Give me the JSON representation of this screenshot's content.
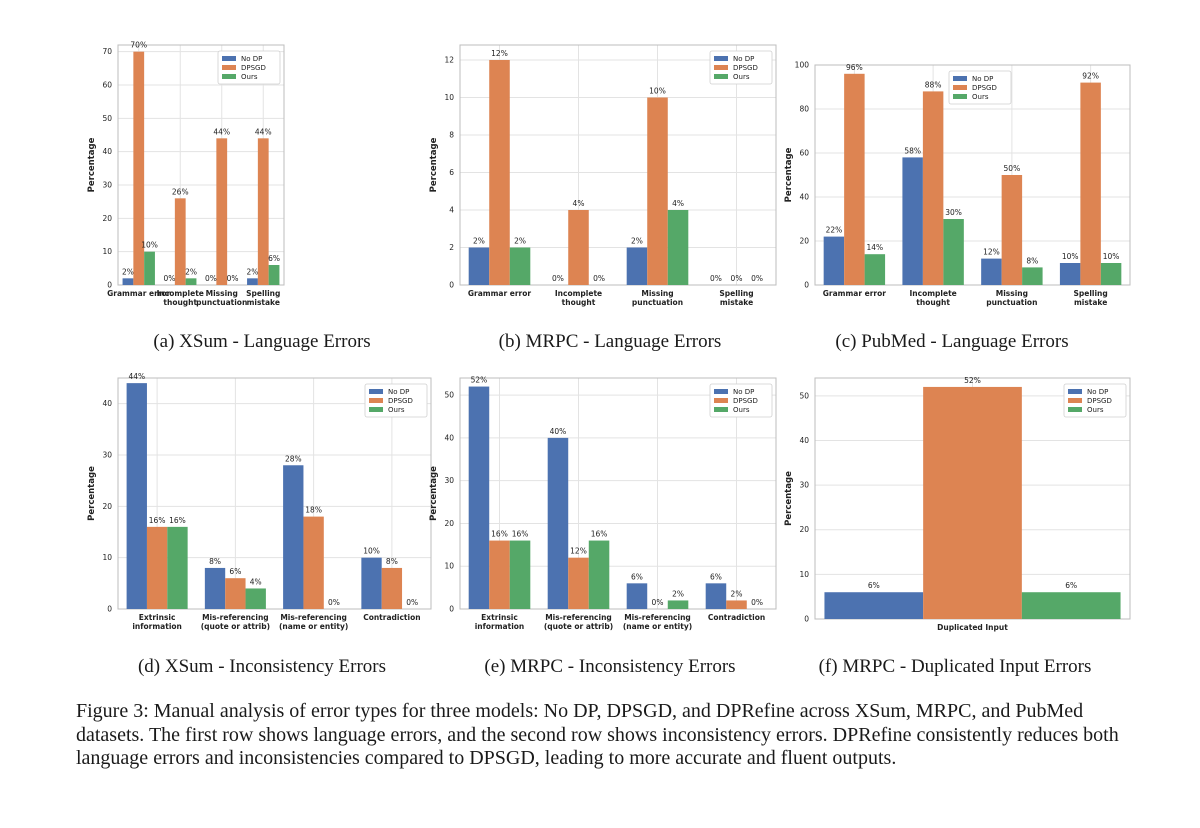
{
  "colors": {
    "nodp": "#4C72B0",
    "dpsgd": "#DD8452",
    "ours": "#55A868",
    "grid": "#e3e3e3",
    "frame": "#bdbdbd",
    "text": "#222222"
  },
  "legend": [
    "No DP",
    "DPSGD",
    "Ours"
  ],
  "chart_data": [
    {
      "id": "a",
      "type": "bar",
      "title": "(a) XSum - Language Errors",
      "xlabel": "",
      "ylabel": "Percentage",
      "ylim": [
        0,
        72
      ],
      "yticks": [
        0,
        10,
        20,
        30,
        40,
        50,
        60,
        70
      ],
      "grid": true,
      "legend_position": "top-right",
      "categories": [
        "Grammar error",
        "Incomplete thought",
        "Missing punctuation",
        "Spelling mistake"
      ],
      "series": [
        {
          "name": "No DP",
          "values": [
            2,
            0,
            0,
            2
          ]
        },
        {
          "name": "DPSGD",
          "values": [
            70,
            26,
            44,
            44
          ]
        },
        {
          "name": "Ours",
          "values": [
            10,
            2,
            0,
            6
          ]
        }
      ]
    },
    {
      "id": "b",
      "type": "bar",
      "title": "(b) MRPC - Language Errors",
      "xlabel": "",
      "ylabel": "Percentage",
      "ylim": [
        0,
        12.8
      ],
      "yticks": [
        0,
        2,
        4,
        6,
        8,
        10,
        12
      ],
      "grid": true,
      "legend_position": "top-right",
      "categories": [
        "Grammar error",
        "Incomplete thought",
        "Missing punctuation",
        "Spelling mistake"
      ],
      "series": [
        {
          "name": "No DP",
          "values": [
            2,
            0,
            2,
            0
          ]
        },
        {
          "name": "DPSGD",
          "values": [
            12,
            4,
            10,
            0
          ]
        },
        {
          "name": "Ours",
          "values": [
            2,
            0,
            4,
            0
          ]
        }
      ]
    },
    {
      "id": "c",
      "type": "bar",
      "title": "(c) PubMed - Language Errors",
      "xlabel": "",
      "ylabel": "Percentage",
      "ylim": [
        0,
        100
      ],
      "yticks": [
        0,
        20,
        40,
        60,
        80,
        100
      ],
      "grid": true,
      "legend_position": "top-left",
      "categories": [
        "Grammar error",
        "Incomplete thought",
        "Missing punctuation",
        "Spelling mistake"
      ],
      "series": [
        {
          "name": "No DP",
          "values": [
            22,
            58,
            12,
            10
          ]
        },
        {
          "name": "DPSGD",
          "values": [
            96,
            88,
            50,
            92
          ]
        },
        {
          "name": "Ours",
          "values": [
            14,
            30,
            8,
            10
          ]
        }
      ]
    },
    {
      "id": "d",
      "type": "bar",
      "title": "(d) XSum - Inconsistency Errors",
      "xlabel": "",
      "ylabel": "Percentage",
      "ylim": [
        0,
        45
      ],
      "yticks": [
        0,
        10,
        20,
        30,
        40
      ],
      "grid": true,
      "legend_position": "top-right",
      "categories": [
        "Extrinsic information",
        "Mis-referencing (quote or attrib)",
        "Mis-referencing (name or entity)",
        "Contradiction"
      ],
      "series": [
        {
          "name": "No DP",
          "values": [
            44,
            8,
            28,
            10
          ]
        },
        {
          "name": "DPSGD",
          "values": [
            16,
            6,
            18,
            8
          ]
        },
        {
          "name": "Ours",
          "values": [
            16,
            4,
            0,
            0
          ]
        }
      ]
    },
    {
      "id": "e",
      "type": "bar",
      "title": "(e) MRPC - Inconsistency Errors",
      "xlabel": "",
      "ylabel": "Percentage",
      "ylim": [
        0,
        54
      ],
      "yticks": [
        0,
        10,
        20,
        30,
        40,
        50
      ],
      "grid": true,
      "legend_position": "top-right",
      "categories": [
        "Extrinsic information",
        "Mis-referencing (quote or attrib)",
        "Mis-referencing (name or entity)",
        "Contradiction"
      ],
      "series": [
        {
          "name": "No DP",
          "values": [
            52,
            40,
            6,
            6
          ]
        },
        {
          "name": "DPSGD",
          "values": [
            16,
            12,
            0,
            2
          ]
        },
        {
          "name": "Ours",
          "values": [
            16,
            16,
            2,
            0
          ]
        }
      ]
    },
    {
      "id": "f",
      "type": "bar",
      "title": "(f) MRPC - Duplicated Input Errors",
      "xlabel": "",
      "ylabel": "Percentage",
      "ylim": [
        0,
        54
      ],
      "yticks": [
        0,
        10,
        20,
        30,
        40,
        50
      ],
      "grid": true,
      "legend_position": "top-right",
      "categories": [
        "Duplicated Input"
      ],
      "series": [
        {
          "name": "No DP",
          "values": [
            6
          ]
        },
        {
          "name": "DPSGD",
          "values": [
            52
          ]
        },
        {
          "name": "Ours",
          "values": [
            6
          ]
        }
      ]
    }
  ],
  "caption": "Figure 3: Manual analysis of error types for three models: No DP, DPSGD, and DPRefine across XSum, MRPC, and PubMed datasets. The first row shows language errors, and the second row shows inconsistency errors. DPRefine consistently reduces both language errors and inconsistencies compared to DPSGD, leading to more accurate and fluent outputs."
}
